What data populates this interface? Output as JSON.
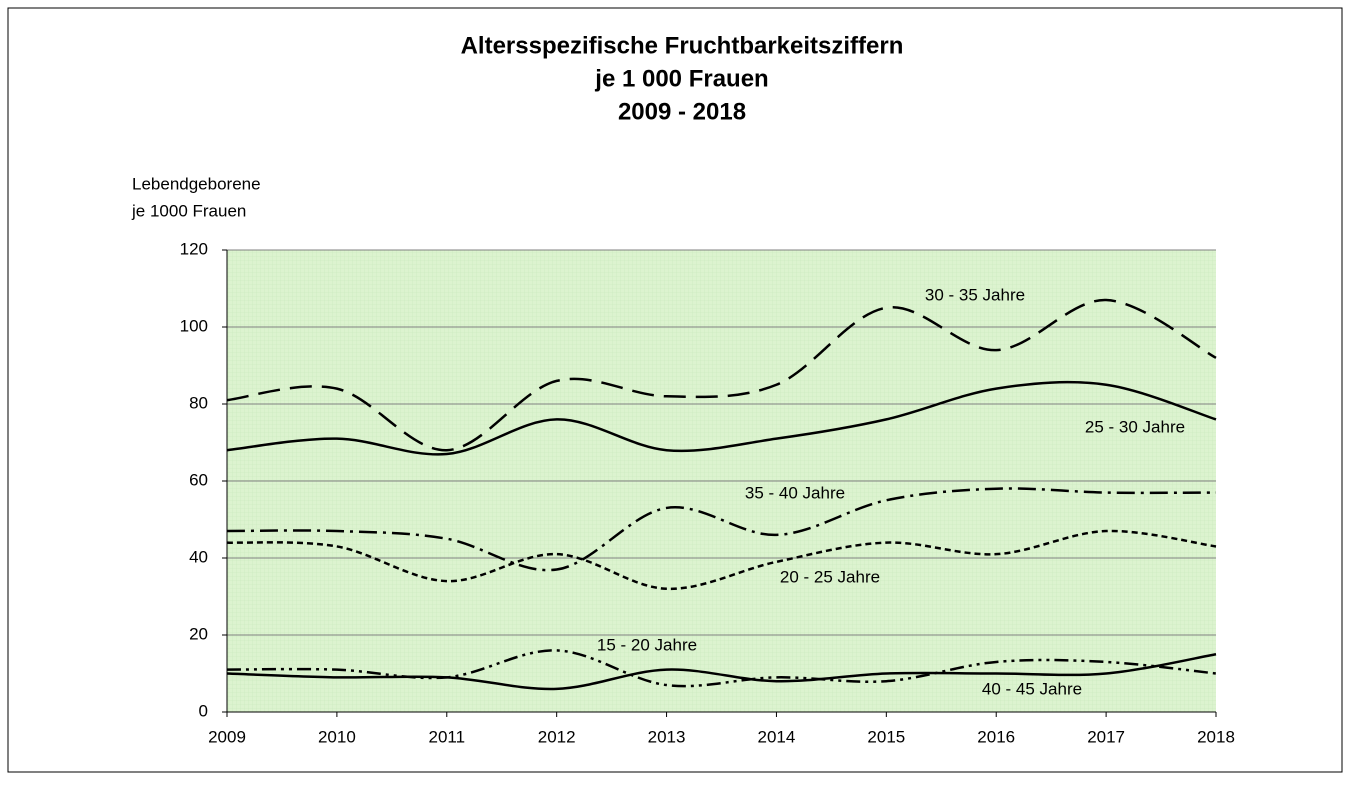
{
  "chart_data": {
    "type": "line",
    "title": [
      "Altersspezifische Fruchtbarkeitsziffern",
      "je 1 000 Frauen",
      "2009 - 2018"
    ],
    "ylabel": [
      "Lebendgeborene",
      "je 1000 Frauen"
    ],
    "x": [
      2009,
      2010,
      2011,
      2012,
      2013,
      2014,
      2015,
      2016,
      2017,
      2018
    ],
    "xlim": [
      2009,
      2018
    ],
    "xticks": [
      2009,
      2010,
      2011,
      2012,
      2013,
      2014,
      2015,
      2016,
      2017,
      2018
    ],
    "ylim": [
      0,
      120
    ],
    "yticks": [
      0,
      20,
      40,
      60,
      80,
      100,
      120
    ],
    "grid": true,
    "series": [
      {
        "name": "30 - 35 Jahre",
        "color": "#000000",
        "dash": "22,10",
        "values": [
          81,
          84,
          68,
          86,
          82,
          85,
          105,
          94,
          107,
          92
        ]
      },
      {
        "name": "25 - 30 Jahre",
        "color": "#000000",
        "dash": "none",
        "values": [
          68,
          71,
          67,
          76,
          68,
          71,
          76,
          84,
          85,
          76
        ]
      },
      {
        "name": "35 - 40 Jahre",
        "color": "#000000",
        "dash": "18,6,3,6",
        "values": [
          47,
          47,
          45,
          37,
          53,
          46,
          55,
          58,
          57,
          57
        ]
      },
      {
        "name": "20 - 25 Jahre",
        "color": "#000000",
        "dash": "6,4",
        "values": [
          44,
          43,
          34,
          41,
          32,
          39,
          44,
          41,
          47,
          43
        ]
      },
      {
        "name": "15 - 20 Jahre",
        "color": "#000000",
        "dash": "14,5,3,5,3,5",
        "values": [
          11,
          11,
          9,
          16,
          7,
          9,
          8,
          13,
          13,
          10
        ]
      },
      {
        "name": "40 - 45 Jahre",
        "color": "#000000",
        "dash": "none",
        "values": [
          10,
          9,
          9,
          6,
          11,
          8,
          10,
          10,
          10,
          15
        ]
      }
    ]
  }
}
